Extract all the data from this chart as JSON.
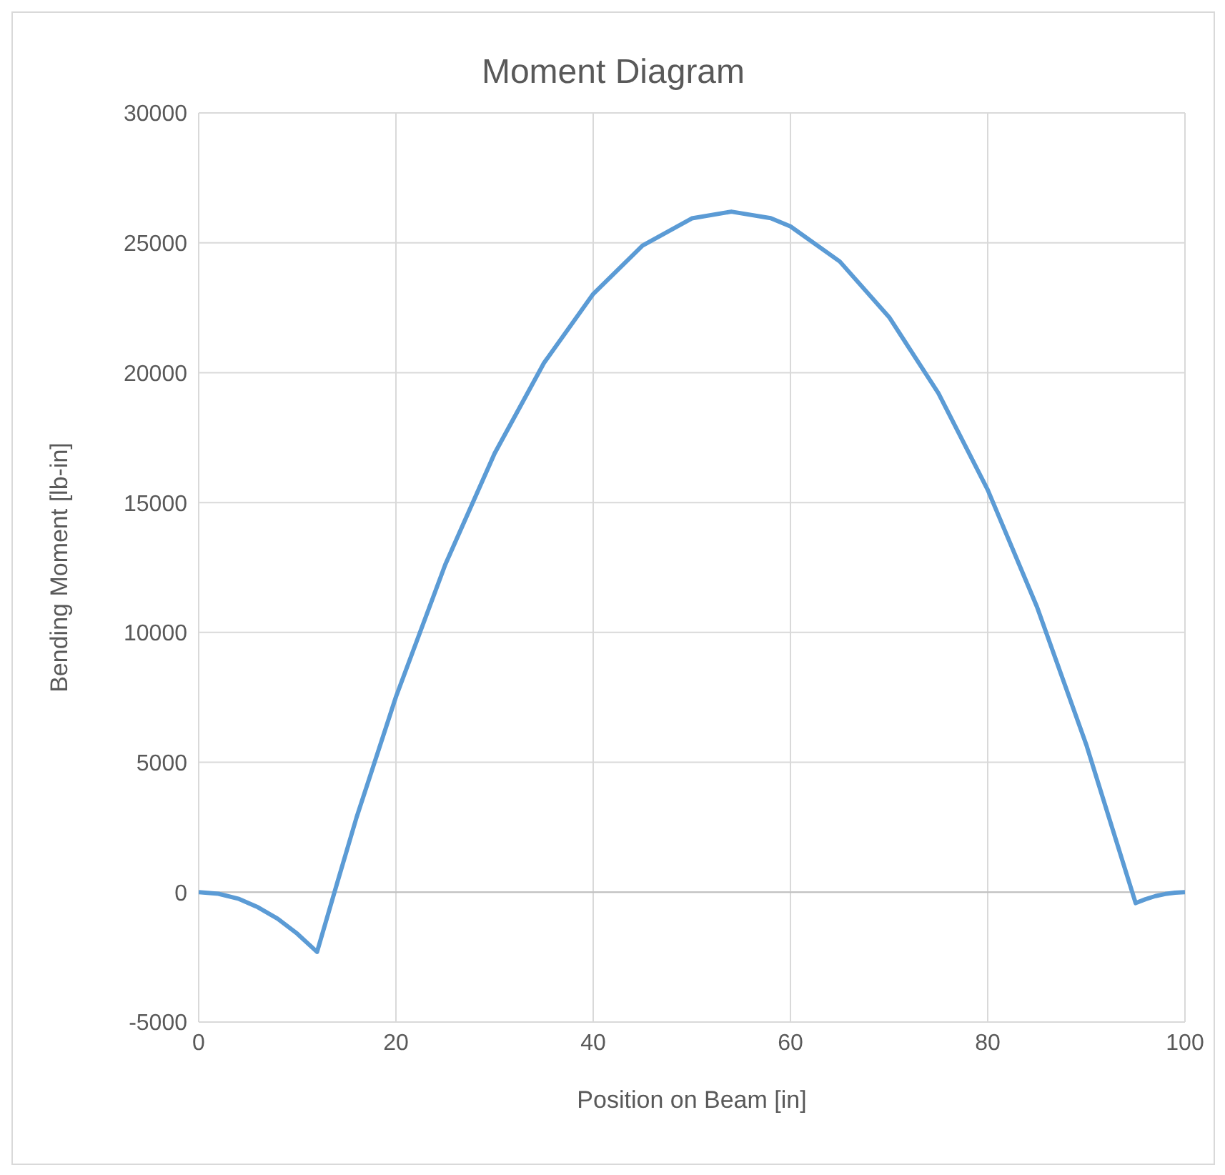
{
  "chart_data": {
    "type": "line",
    "title": "Moment Diagram",
    "xlabel": "Position on Beam [in]",
    "ylabel": "Bending Moment [lb-in]",
    "x": [
      0,
      2,
      4,
      6,
      8,
      10,
      12,
      14,
      16,
      20,
      25,
      30,
      35,
      40,
      45,
      50,
      54,
      58,
      60,
      65,
      70,
      75,
      80,
      85,
      90,
      95,
      96,
      97,
      98,
      99,
      100
    ],
    "series": [
      {
        "color": "#5b9bd5",
        "values": [
          0,
          -60,
          -250,
          -580,
          -1020,
          -1600,
          -2300,
          300,
          2870,
          7520,
          12610,
          16890,
          20370,
          23030,
          24890,
          25940,
          26200,
          25950,
          25630,
          24280,
          22140,
          19210,
          15490,
          10980,
          5670,
          -420,
          -270,
          -150,
          -70,
          -20,
          0
        ]
      }
    ],
    "xlim": [
      0,
      100
    ],
    "xticks": [
      0,
      20,
      40,
      60,
      80,
      100
    ],
    "ylim": [
      -5000,
      30000
    ],
    "yticks": [
      -5000,
      0,
      5000,
      10000,
      15000,
      20000,
      25000,
      30000
    ],
    "grid": true,
    "legend": false,
    "marker": "none",
    "line_style": "solid"
  }
}
